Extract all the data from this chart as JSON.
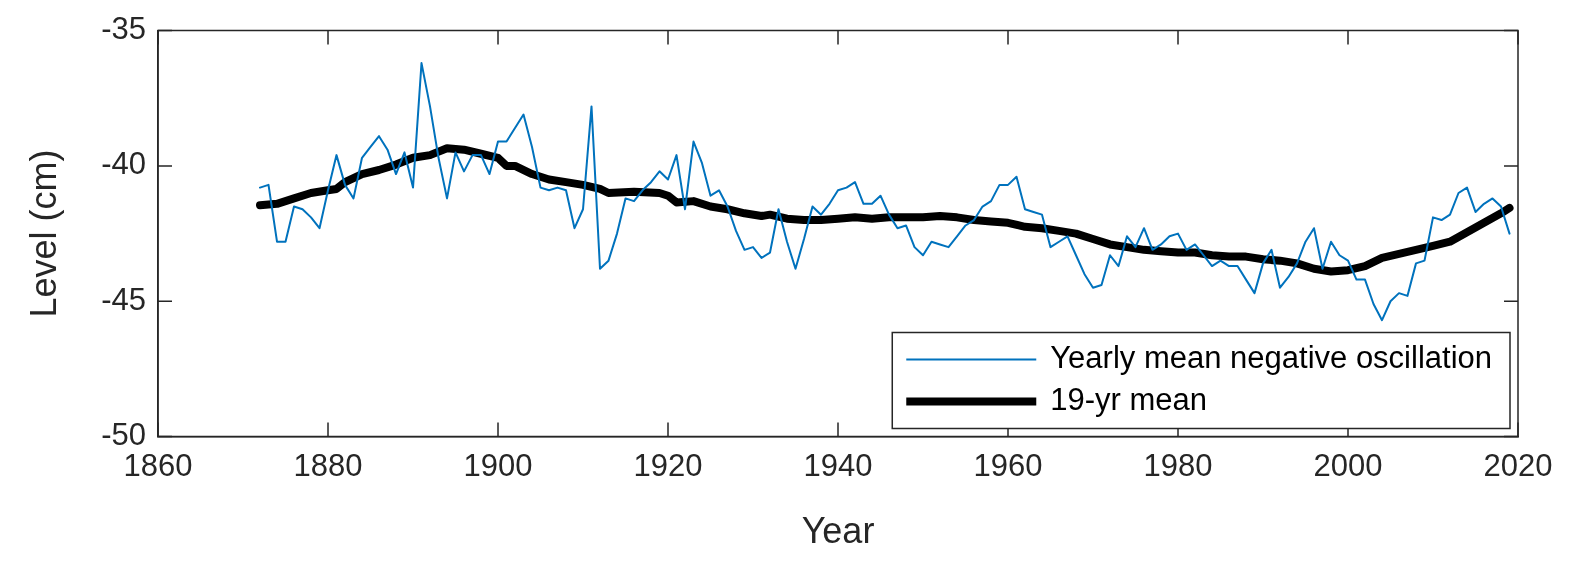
{
  "chart_data": {
    "type": "line",
    "xlabel": "Year",
    "ylabel": "Level (cm)",
    "xlim": [
      1860,
      2020
    ],
    "xticks": [
      1860,
      1880,
      1900,
      1920,
      1940,
      1960,
      1980,
      2000,
      2020
    ],
    "ylim": [
      -50,
      -35
    ],
    "yticks": [
      -50,
      -45,
      -40,
      -35
    ],
    "legend": "bottom right",
    "grid": false,
    "marker": "none",
    "line_style": "solid",
    "series": [
      {
        "name": "Yearly mean negative oscillation",
        "color": "#0072bd",
        "x": [
          1872,
          1873,
          1874,
          1875,
          1876,
          1877,
          1878,
          1879,
          1880,
          1881,
          1882,
          1883,
          1884,
          1885,
          1886,
          1887,
          1888,
          1889,
          1890,
          1891,
          1892,
          1893,
          1894,
          1895,
          1896,
          1897,
          1898,
          1899,
          1900,
          1901,
          1902,
          1903,
          1904,
          1905,
          1906,
          1907,
          1908,
          1909,
          1910,
          1911,
          1912,
          1913,
          1914,
          1915,
          1916,
          1917,
          1918,
          1919,
          1920,
          1921,
          1922,
          1923,
          1924,
          1925,
          1926,
          1927,
          1928,
          1929,
          1930,
          1931,
          1932,
          1933,
          1934,
          1935,
          1936,
          1937,
          1938,
          1939,
          1940,
          1941,
          1942,
          1943,
          1944,
          1945,
          1946,
          1947,
          1948,
          1949,
          1950,
          1951,
          1952,
          1953,
          1954,
          1955,
          1956,
          1957,
          1958,
          1959,
          1960,
          1961,
          1962,
          1963,
          1964,
          1965,
          1966,
          1967,
          1968,
          1969,
          1970,
          1971,
          1972,
          1973,
          1974,
          1975,
          1976,
          1977,
          1978,
          1979,
          1980,
          1981,
          1982,
          1983,
          1984,
          1985,
          1986,
          1987,
          1988,
          1989,
          1990,
          1991,
          1992,
          1993,
          1994,
          1995,
          1996,
          1997,
          1998,
          1999,
          2000,
          2001,
          2002,
          2003,
          2004,
          2005,
          2006,
          2007,
          2008,
          2009,
          2010,
          2011,
          2012,
          2013,
          2014,
          2015,
          2016,
          2017,
          2018,
          2019
        ],
        "values": [
          -40.8,
          -40.7,
          -42.8,
          -42.8,
          -41.5,
          -41.6,
          -41.9,
          -42.3,
          -40.9,
          -39.6,
          -40.7,
          -41.2,
          -39.7,
          -39.3,
          -38.9,
          -39.4,
          -40.3,
          -39.5,
          -40.8,
          -36.2,
          -37.8,
          -39.7,
          -41.2,
          -39.5,
          -40.2,
          -39.6,
          -39.6,
          -40.3,
          -39.1,
          -39.1,
          -38.6,
          -38.1,
          -39.3,
          -40.8,
          -40.9,
          -40.8,
          -40.9,
          -42.3,
          -41.6,
          -37.8,
          -43.8,
          -43.5,
          -42.5,
          -41.2,
          -41.3,
          -40.9,
          -40.6,
          -40.2,
          -40.5,
          -39.6,
          -41.6,
          -39.1,
          -39.9,
          -41.1,
          -40.9,
          -41.5,
          -42.4,
          -43.1,
          -43.0,
          -43.4,
          -43.2,
          -41.6,
          -42.8,
          -43.8,
          -42.7,
          -41.5,
          -41.8,
          -41.4,
          -40.9,
          -40.8,
          -40.6,
          -41.4,
          -41.4,
          -41.1,
          -41.8,
          -42.3,
          -42.2,
          -43.0,
          -43.3,
          -42.8,
          -42.9,
          -43.0,
          -42.6,
          -42.2,
          -42.0,
          -41.5,
          -41.3,
          -40.7,
          -40.7,
          -40.4,
          -41.6,
          -41.7,
          -41.8,
          -43.0,
          -42.8,
          -42.6,
          -43.3,
          -44.0,
          -44.5,
          -44.4,
          -43.3,
          -43.7,
          -42.6,
          -43.0,
          -42.3,
          -43.1,
          -42.9,
          -42.6,
          -42.5,
          -43.1,
          -42.9,
          -43.3,
          -43.7,
          -43.5,
          -43.7,
          -43.7,
          -44.2,
          -44.7,
          -43.6,
          -43.1,
          -44.5,
          -44.1,
          -43.6,
          -42.8,
          -42.3,
          -43.8,
          -42.8,
          -43.3,
          -43.5,
          -44.2,
          -44.2,
          -45.1,
          -45.7,
          -45.0,
          -44.7,
          -44.8,
          -43.6,
          -43.5,
          -41.9,
          -42.0,
          -41.8,
          -41.0,
          -40.8,
          -41.7,
          -41.4,
          -41.2,
          -41.5,
          -42.5
        ]
      },
      {
        "name": "19-yr mean",
        "color": "#000000",
        "x": [
          1872,
          1874,
          1876,
          1878,
          1880,
          1881,
          1882,
          1884,
          1886,
          1888,
          1890,
          1892,
          1894,
          1896,
          1898,
          1900,
          1901,
          1902,
          1904,
          1906,
          1908,
          1910,
          1912,
          1913,
          1916,
          1919,
          1920,
          1921,
          1923,
          1925,
          1927,
          1929,
          1931,
          1932,
          1934,
          1936,
          1938,
          1940,
          1942,
          1944,
          1946,
          1948,
          1950,
          1952,
          1954,
          1956,
          1958,
          1960,
          1962,
          1964,
          1966,
          1968,
          1970,
          1972,
          1974,
          1976,
          1978,
          1980,
          1982,
          1984,
          1986,
          1988,
          1990,
          1992,
          1994,
          1996,
          1998,
          2000,
          2002,
          2004,
          2006,
          2008,
          2010,
          2012,
          2014,
          2016,
          2018,
          2019
        ],
        "values": [
          -41.45,
          -41.4,
          -41.2,
          -41.0,
          -40.9,
          -40.85,
          -40.6,
          -40.3,
          -40.15,
          -39.95,
          -39.7,
          -39.6,
          -39.35,
          -39.4,
          -39.55,
          -39.7,
          -40.0,
          -40.0,
          -40.3,
          -40.5,
          -40.6,
          -40.7,
          -40.85,
          -41.0,
          -40.95,
          -41.0,
          -41.1,
          -41.35,
          -41.3,
          -41.5,
          -41.6,
          -41.75,
          -41.85,
          -41.8,
          -41.95,
          -42.0,
          -42.0,
          -41.95,
          -41.9,
          -41.95,
          -41.9,
          -41.9,
          -41.9,
          -41.85,
          -41.9,
          -42.0,
          -42.05,
          -42.1,
          -42.25,
          -42.3,
          -42.4,
          -42.5,
          -42.7,
          -42.9,
          -43.0,
          -43.1,
          -43.15,
          -43.2,
          -43.2,
          -43.3,
          -43.35,
          -43.35,
          -43.45,
          -43.5,
          -43.6,
          -43.8,
          -43.9,
          -43.85,
          -43.7,
          -43.4,
          -43.25,
          -43.1,
          -42.95,
          -42.8,
          -42.45,
          -42.1,
          -41.75,
          -41.55
        ]
      }
    ]
  }
}
